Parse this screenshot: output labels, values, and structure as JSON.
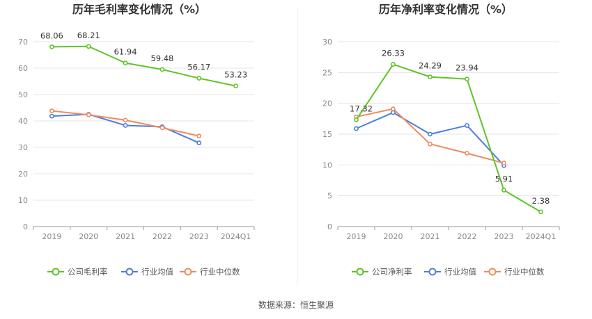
{
  "source_label": "数据来源：恒生聚源",
  "colors": {
    "company": "#5fc427",
    "industry_avg": "#4d7de0",
    "industry_median": "#ef8a5e",
    "grid": "#e6e6e6",
    "axis": "#999999",
    "divider": "#eeeeee"
  },
  "chart_data": [
    {
      "type": "line",
      "title": "历年毛利率变化情况（%）",
      "categories": [
        "2019",
        "2020",
        "2021",
        "2022",
        "2023",
        "2024Q1"
      ],
      "ylim": [
        0,
        70
      ],
      "yticks": [
        0,
        10,
        20,
        30,
        40,
        50,
        60,
        70
      ],
      "grid": true,
      "legend_position": "bottom",
      "series": [
        {
          "name": "公司毛利率",
          "color_key": "company",
          "labeled": true,
          "values": [
            68.06,
            68.21,
            61.94,
            59.48,
            56.17,
            53.23
          ],
          "labels": [
            "68.06",
            "68.21",
            "61.94",
            "59.48",
            "56.17",
            "53.23"
          ]
        },
        {
          "name": "行业均值",
          "color_key": "industry_avg",
          "labeled": false,
          "values": [
            41.8,
            42.5,
            38.3,
            37.8,
            31.7,
            null
          ]
        },
        {
          "name": "行业中位数",
          "color_key": "industry_median",
          "labeled": false,
          "values": [
            43.8,
            42.3,
            40.3,
            37.4,
            34.3,
            null
          ]
        }
      ]
    },
    {
      "type": "line",
      "title": "历年净利率变化情况（%）",
      "categories": [
        "2019",
        "2020",
        "2021",
        "2022",
        "2023",
        "2024Q1"
      ],
      "ylim": [
        0,
        30
      ],
      "yticks": [
        0,
        5,
        10,
        15,
        20,
        25,
        30
      ],
      "grid": true,
      "legend_position": "bottom",
      "series": [
        {
          "name": "公司净利率",
          "color_key": "company",
          "labeled": true,
          "values": [
            17.32,
            26.33,
            24.29,
            23.94,
            5.91,
            2.38
          ],
          "labels": [
            "17.32",
            "26.33",
            "24.29",
            "23.94",
            "5.91",
            "2.38"
          ]
        },
        {
          "name": "行业均值",
          "color_key": "industry_avg",
          "labeled": false,
          "values": [
            15.9,
            18.5,
            15.0,
            16.4,
            9.9,
            null
          ]
        },
        {
          "name": "行业中位数",
          "color_key": "industry_median",
          "labeled": false,
          "values": [
            17.8,
            19.1,
            13.4,
            11.9,
            10.3,
            null
          ]
        }
      ]
    }
  ]
}
